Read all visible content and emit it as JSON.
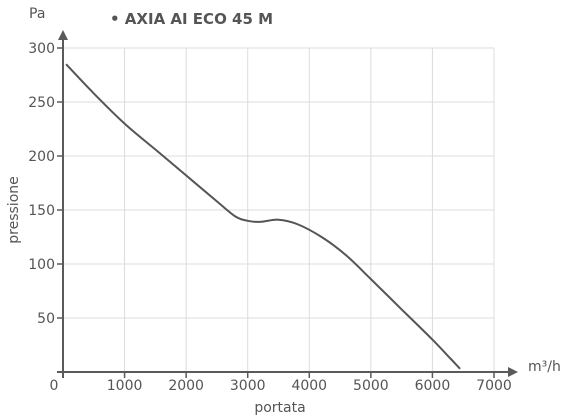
{
  "chart_data": {
    "type": "line",
    "title": "• AXIA AI ECO 45 M",
    "xlabel": "portata",
    "ylabel": "pressione",
    "x_unit": "m³/h",
    "y_unit": "Pa",
    "xlim": [
      0,
      7000
    ],
    "ylim": [
      0,
      300
    ],
    "x_ticks": [
      0,
      1000,
      2000,
      3000,
      4000,
      5000,
      6000,
      7000
    ],
    "y_ticks": [
      50,
      100,
      150,
      200,
      250,
      300
    ],
    "grid": true,
    "colors": {
      "curve": "#555555",
      "axis": "#5a5a5a",
      "grid": "#dcdcdc"
    },
    "series": [
      {
        "x": [
          50,
          500,
          1000,
          1500,
          2000,
          2500,
          2800,
          3000,
          3200,
          3500,
          3800,
          4200,
          4600,
          5000,
          5500,
          6000,
          6300,
          6450
        ],
        "y": [
          285,
          258,
          230,
          206,
          182,
          158,
          144,
          140,
          139,
          141,
          137,
          125,
          108,
          86,
          58,
          30,
          12,
          3
        ]
      }
    ]
  }
}
